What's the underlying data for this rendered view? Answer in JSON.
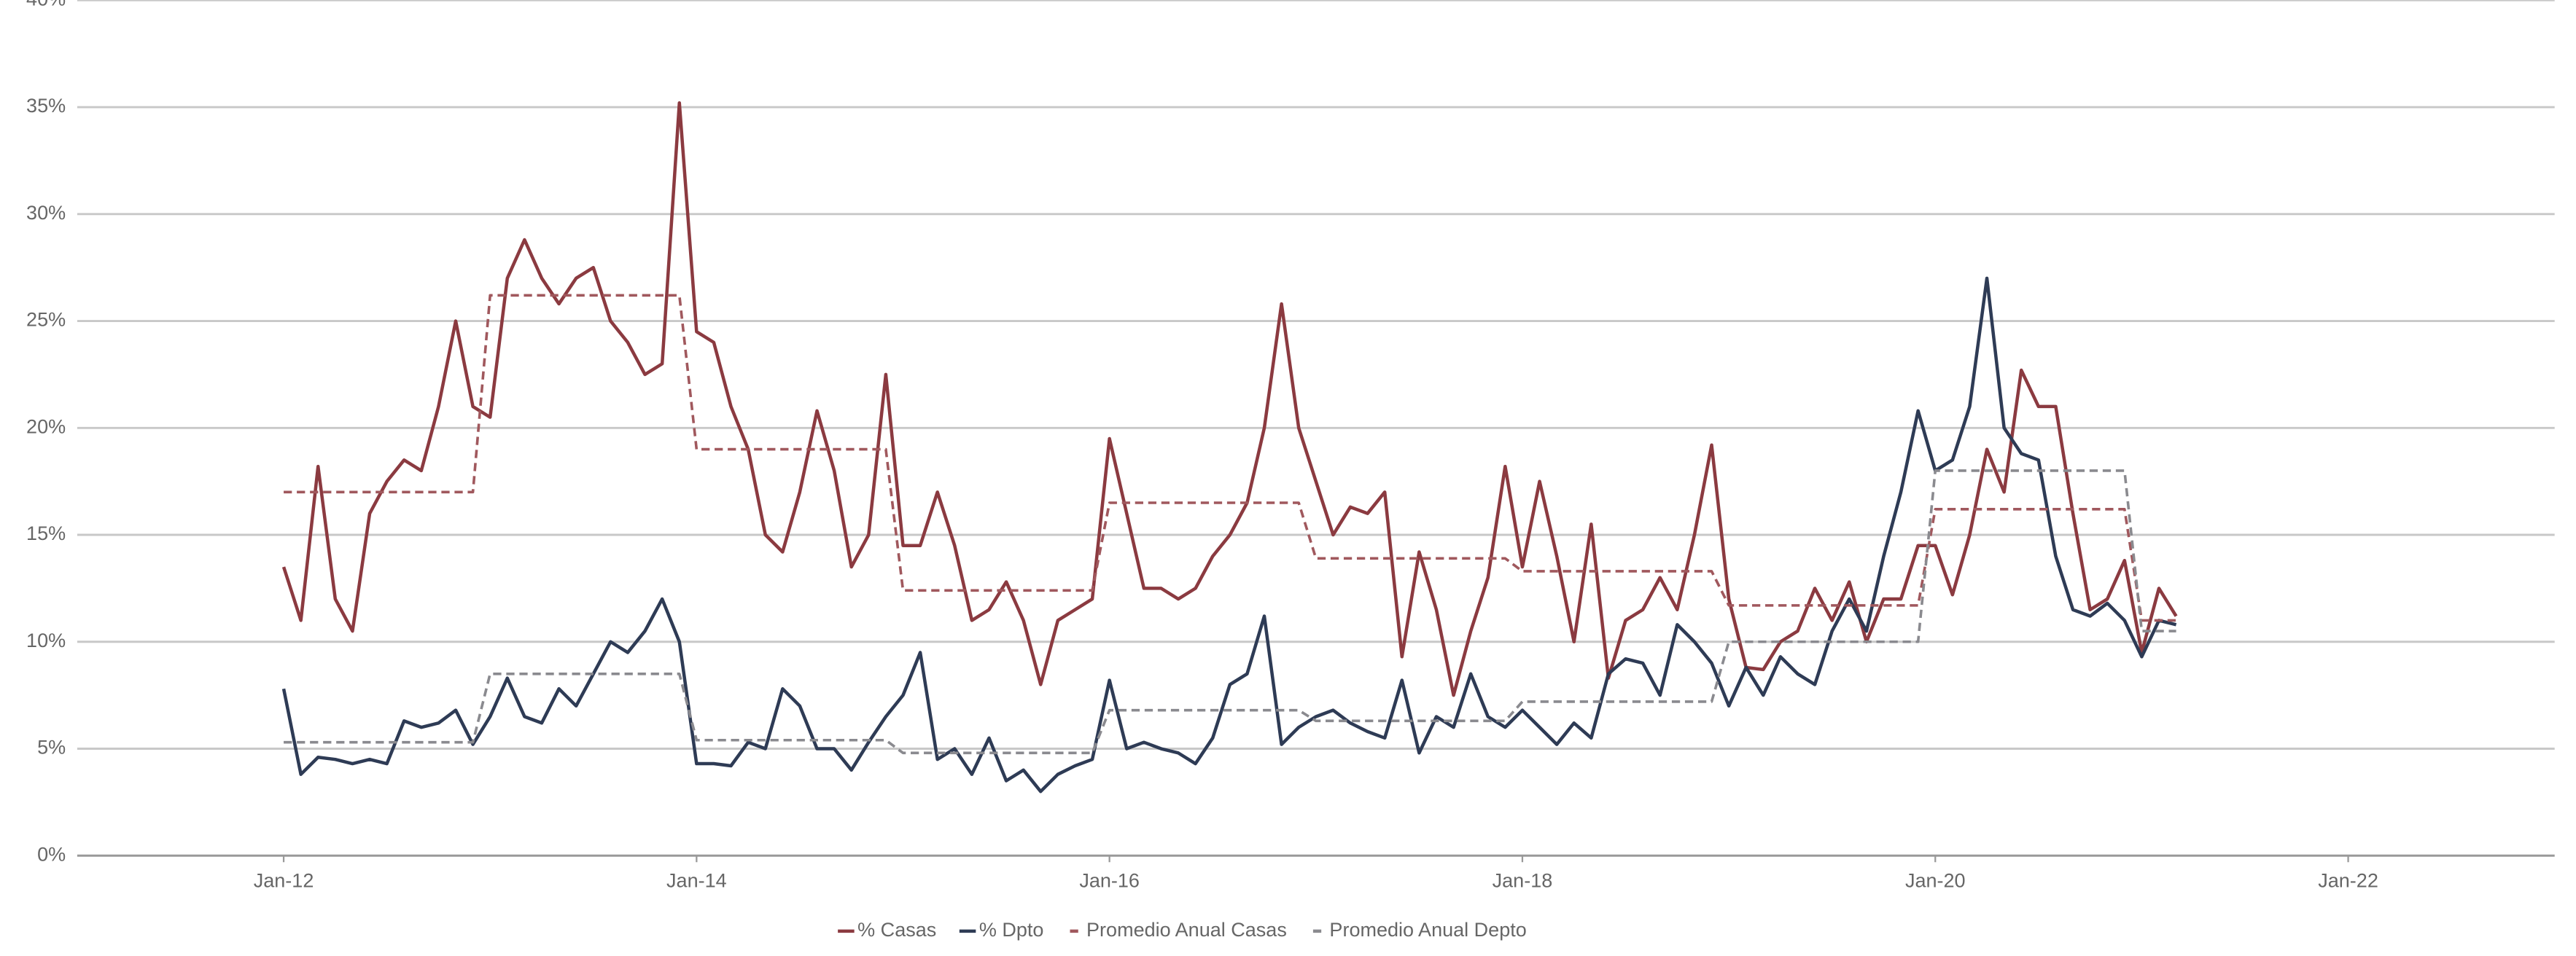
{
  "chart_data": {
    "type": "line",
    "x": [
      "2012-01",
      "2012-02",
      "2012-03",
      "2012-04",
      "2012-05",
      "2012-06",
      "2012-07",
      "2012-08",
      "2012-09",
      "2012-10",
      "2012-11",
      "2012-12",
      "2013-01",
      "2013-02",
      "2013-03",
      "2013-04",
      "2013-05",
      "2013-06",
      "2013-07",
      "2013-08",
      "2013-09",
      "2013-10",
      "2013-11",
      "2013-12",
      "2014-01",
      "2014-02",
      "2014-03",
      "2014-04",
      "2014-05",
      "2014-06",
      "2014-07",
      "2014-08",
      "2014-09",
      "2014-10",
      "2014-11",
      "2014-12",
      "2015-01",
      "2015-02",
      "2015-03",
      "2015-04",
      "2015-05",
      "2015-06",
      "2015-07",
      "2015-08",
      "2015-09",
      "2015-10",
      "2015-11",
      "2015-12",
      "2016-01",
      "2016-02",
      "2016-03",
      "2016-04",
      "2016-05",
      "2016-06",
      "2016-07",
      "2016-08",
      "2016-09",
      "2016-10",
      "2016-11",
      "2016-12",
      "2017-01",
      "2017-02",
      "2017-03",
      "2017-04",
      "2017-05",
      "2017-06",
      "2017-07",
      "2017-08",
      "2017-09",
      "2017-10",
      "2017-11",
      "2017-12",
      "2018-01",
      "2018-02",
      "2018-03",
      "2018-04",
      "2018-05",
      "2018-06",
      "2018-07",
      "2018-08",
      "2018-09",
      "2018-10",
      "2018-11",
      "2018-12",
      "2019-01",
      "2019-02",
      "2019-03",
      "2019-04",
      "2019-05",
      "2019-06",
      "2019-07",
      "2019-08",
      "2019-09",
      "2019-10",
      "2019-11",
      "2019-12",
      "2020-01",
      "2020-02",
      "2020-03",
      "2020-04",
      "2020-05",
      "2020-06",
      "2020-07",
      "2020-08",
      "2020-09",
      "2020-10",
      "2020-11",
      "2020-12",
      "2021-01",
      "2021-02",
      "2021-03"
    ],
    "series": [
      {
        "name": "% Casas",
        "color": "#8b3a40",
        "dashed": false,
        "values": [
          13.5,
          11,
          18.2,
          12,
          10.5,
          16,
          17.5,
          18.5,
          18,
          21,
          25,
          21,
          20.5,
          27,
          28.8,
          27,
          25.8,
          27,
          27.5,
          25,
          24,
          22.5,
          23,
          35.2,
          24.5,
          24,
          21,
          19,
          15,
          14.2,
          17,
          20.8,
          18,
          13.5,
          15,
          22.5,
          14.5,
          14.5,
          17,
          14.5,
          11,
          11.5,
          12.8,
          11,
          8,
          11,
          11.5,
          12,
          19.5,
          16,
          12.5,
          12.5,
          12,
          12.5,
          14,
          15,
          16.5,
          20,
          25.8,
          20,
          17.5,
          15,
          16.3,
          16,
          17,
          9.3,
          14.2,
          11.5,
          7.5,
          10.5,
          13,
          18.2,
          13.5,
          17.5,
          14,
          10,
          15.5,
          8.3,
          11,
          11.5,
          13,
          11.5,
          15,
          19.2,
          12,
          8.8,
          8.7,
          10,
          10.5,
          12.5,
          11,
          12.8,
          10,
          12,
          12,
          14.5,
          14.5,
          12.2,
          15,
          19,
          17,
          22.7,
          21,
          21,
          16,
          11.5,
          12,
          13.8,
          9.5,
          12.5,
          11.2
        ]
      },
      {
        "name": "% Dpto",
        "color": "#2e3b55",
        "dashed": false,
        "values": [
          7.8,
          3.8,
          4.6,
          4.5,
          4.3,
          4.5,
          4.3,
          6.3,
          6,
          6.2,
          6.8,
          5.2,
          6.5,
          8.3,
          6.5,
          6.2,
          7.8,
          7,
          8.5,
          10,
          9.5,
          10.5,
          12,
          10,
          4.3,
          4.3,
          4.2,
          5.3,
          5,
          7.8,
          7,
          5,
          5,
          4,
          5.3,
          6.5,
          7.5,
          9.5,
          4.5,
          5,
          3.8,
          5.5,
          3.5,
          4,
          3,
          3.8,
          4.2,
          4.5,
          8.2,
          5,
          5.3,
          5,
          4.8,
          4.3,
          5.5,
          8,
          8.5,
          11.2,
          5.2,
          6,
          6.5,
          6.8,
          6.2,
          5.8,
          5.5,
          8.2,
          4.8,
          6.5,
          6,
          8.5,
          6.5,
          6,
          6.8,
          6,
          5.2,
          6.2,
          5.5,
          8.5,
          9.2,
          9,
          7.5,
          10.8,
          10,
          9,
          7,
          8.8,
          7.5,
          9.3,
          8.5,
          8,
          10.5,
          12,
          10.5,
          14,
          17,
          20.8,
          18,
          18.5,
          21,
          27,
          20,
          18.8,
          18.5,
          14,
          11.5,
          11.2,
          11.8,
          11,
          9.3,
          11,
          10.8
        ]
      },
      {
        "name": "Promedio Anual Casas",
        "color": "#a0585d",
        "dashed": true,
        "values": [
          17,
          17,
          17,
          17,
          17,
          17,
          17,
          17,
          17,
          17,
          17,
          17,
          26.2,
          26.2,
          26.2,
          26.2,
          26.2,
          26.2,
          26.2,
          26.2,
          26.2,
          26.2,
          26.2,
          26.2,
          19,
          19,
          19,
          19,
          19,
          19,
          19,
          19,
          19,
          19,
          19,
          19,
          12.4,
          12.4,
          12.4,
          12.4,
          12.4,
          12.4,
          12.4,
          12.4,
          12.4,
          12.4,
          12.4,
          12.4,
          16.5,
          16.5,
          16.5,
          16.5,
          16.5,
          16.5,
          16.5,
          16.5,
          16.5,
          16.5,
          16.5,
          16.5,
          13.9,
          13.9,
          13.9,
          13.9,
          13.9,
          13.9,
          13.9,
          13.9,
          13.9,
          13.9,
          13.9,
          13.9,
          13.3,
          13.3,
          13.3,
          13.3,
          13.3,
          13.3,
          13.3,
          13.3,
          13.3,
          13.3,
          13.3,
          13.3,
          11.7,
          11.7,
          11.7,
          11.7,
          11.7,
          11.7,
          11.7,
          11.7,
          11.7,
          11.7,
          11.7,
          11.7,
          16.2,
          16.2,
          16.2,
          16.2,
          16.2,
          16.2,
          16.2,
          16.2,
          16.2,
          16.2,
          16.2,
          16.2,
          11,
          11,
          11
        ]
      },
      {
        "name": "Promedio Anual Depto",
        "color": "#8a8a8f",
        "dashed": true,
        "values": [
          5.3,
          5.3,
          5.3,
          5.3,
          5.3,
          5.3,
          5.3,
          5.3,
          5.3,
          5.3,
          5.3,
          5.3,
          8.5,
          8.5,
          8.5,
          8.5,
          8.5,
          8.5,
          8.5,
          8.5,
          8.5,
          8.5,
          8.5,
          8.5,
          5.4,
          5.4,
          5.4,
          5.4,
          5.4,
          5.4,
          5.4,
          5.4,
          5.4,
          5.4,
          5.4,
          5.4,
          4.8,
          4.8,
          4.8,
          4.8,
          4.8,
          4.8,
          4.8,
          4.8,
          4.8,
          4.8,
          4.8,
          4.8,
          6.8,
          6.8,
          6.8,
          6.8,
          6.8,
          6.8,
          6.8,
          6.8,
          6.8,
          6.8,
          6.8,
          6.8,
          6.3,
          6.3,
          6.3,
          6.3,
          6.3,
          6.3,
          6.3,
          6.3,
          6.3,
          6.3,
          6.3,
          6.3,
          7.2,
          7.2,
          7.2,
          7.2,
          7.2,
          7.2,
          7.2,
          7.2,
          7.2,
          7.2,
          7.2,
          7.2,
          10,
          10,
          10,
          10,
          10,
          10,
          10,
          10,
          10,
          10,
          10,
          10,
          18,
          18,
          18,
          18,
          18,
          18,
          18,
          18,
          18,
          18,
          18,
          18,
          10.5,
          10.5,
          10.5
        ]
      }
    ],
    "xlim": [
      "2011-01",
      "2023-01"
    ],
    "xticks": [
      {
        "value": "2012-01",
        "label": "Jan-12"
      },
      {
        "value": "2014-01",
        "label": "Jan-14"
      },
      {
        "value": "2016-01",
        "label": "Jan-16"
      },
      {
        "value": "2018-01",
        "label": "Jan-18"
      },
      {
        "value": "2020-01",
        "label": "Jan-20"
      },
      {
        "value": "2022-01",
        "label": "Jan-22"
      }
    ],
    "ylim": [
      0,
      40
    ],
    "yticks": [
      {
        "value": 0,
        "label": "0%"
      },
      {
        "value": 5,
        "label": "5%"
      },
      {
        "value": 10,
        "label": "10%"
      },
      {
        "value": 15,
        "label": "15%"
      },
      {
        "value": 20,
        "label": "20%"
      },
      {
        "value": 25,
        "label": "25%"
      },
      {
        "value": 30,
        "label": "30%"
      },
      {
        "value": 35,
        "label": "35%"
      },
      {
        "value": 40,
        "label": "40%"
      }
    ],
    "grid": true,
    "legend": "bottom"
  }
}
